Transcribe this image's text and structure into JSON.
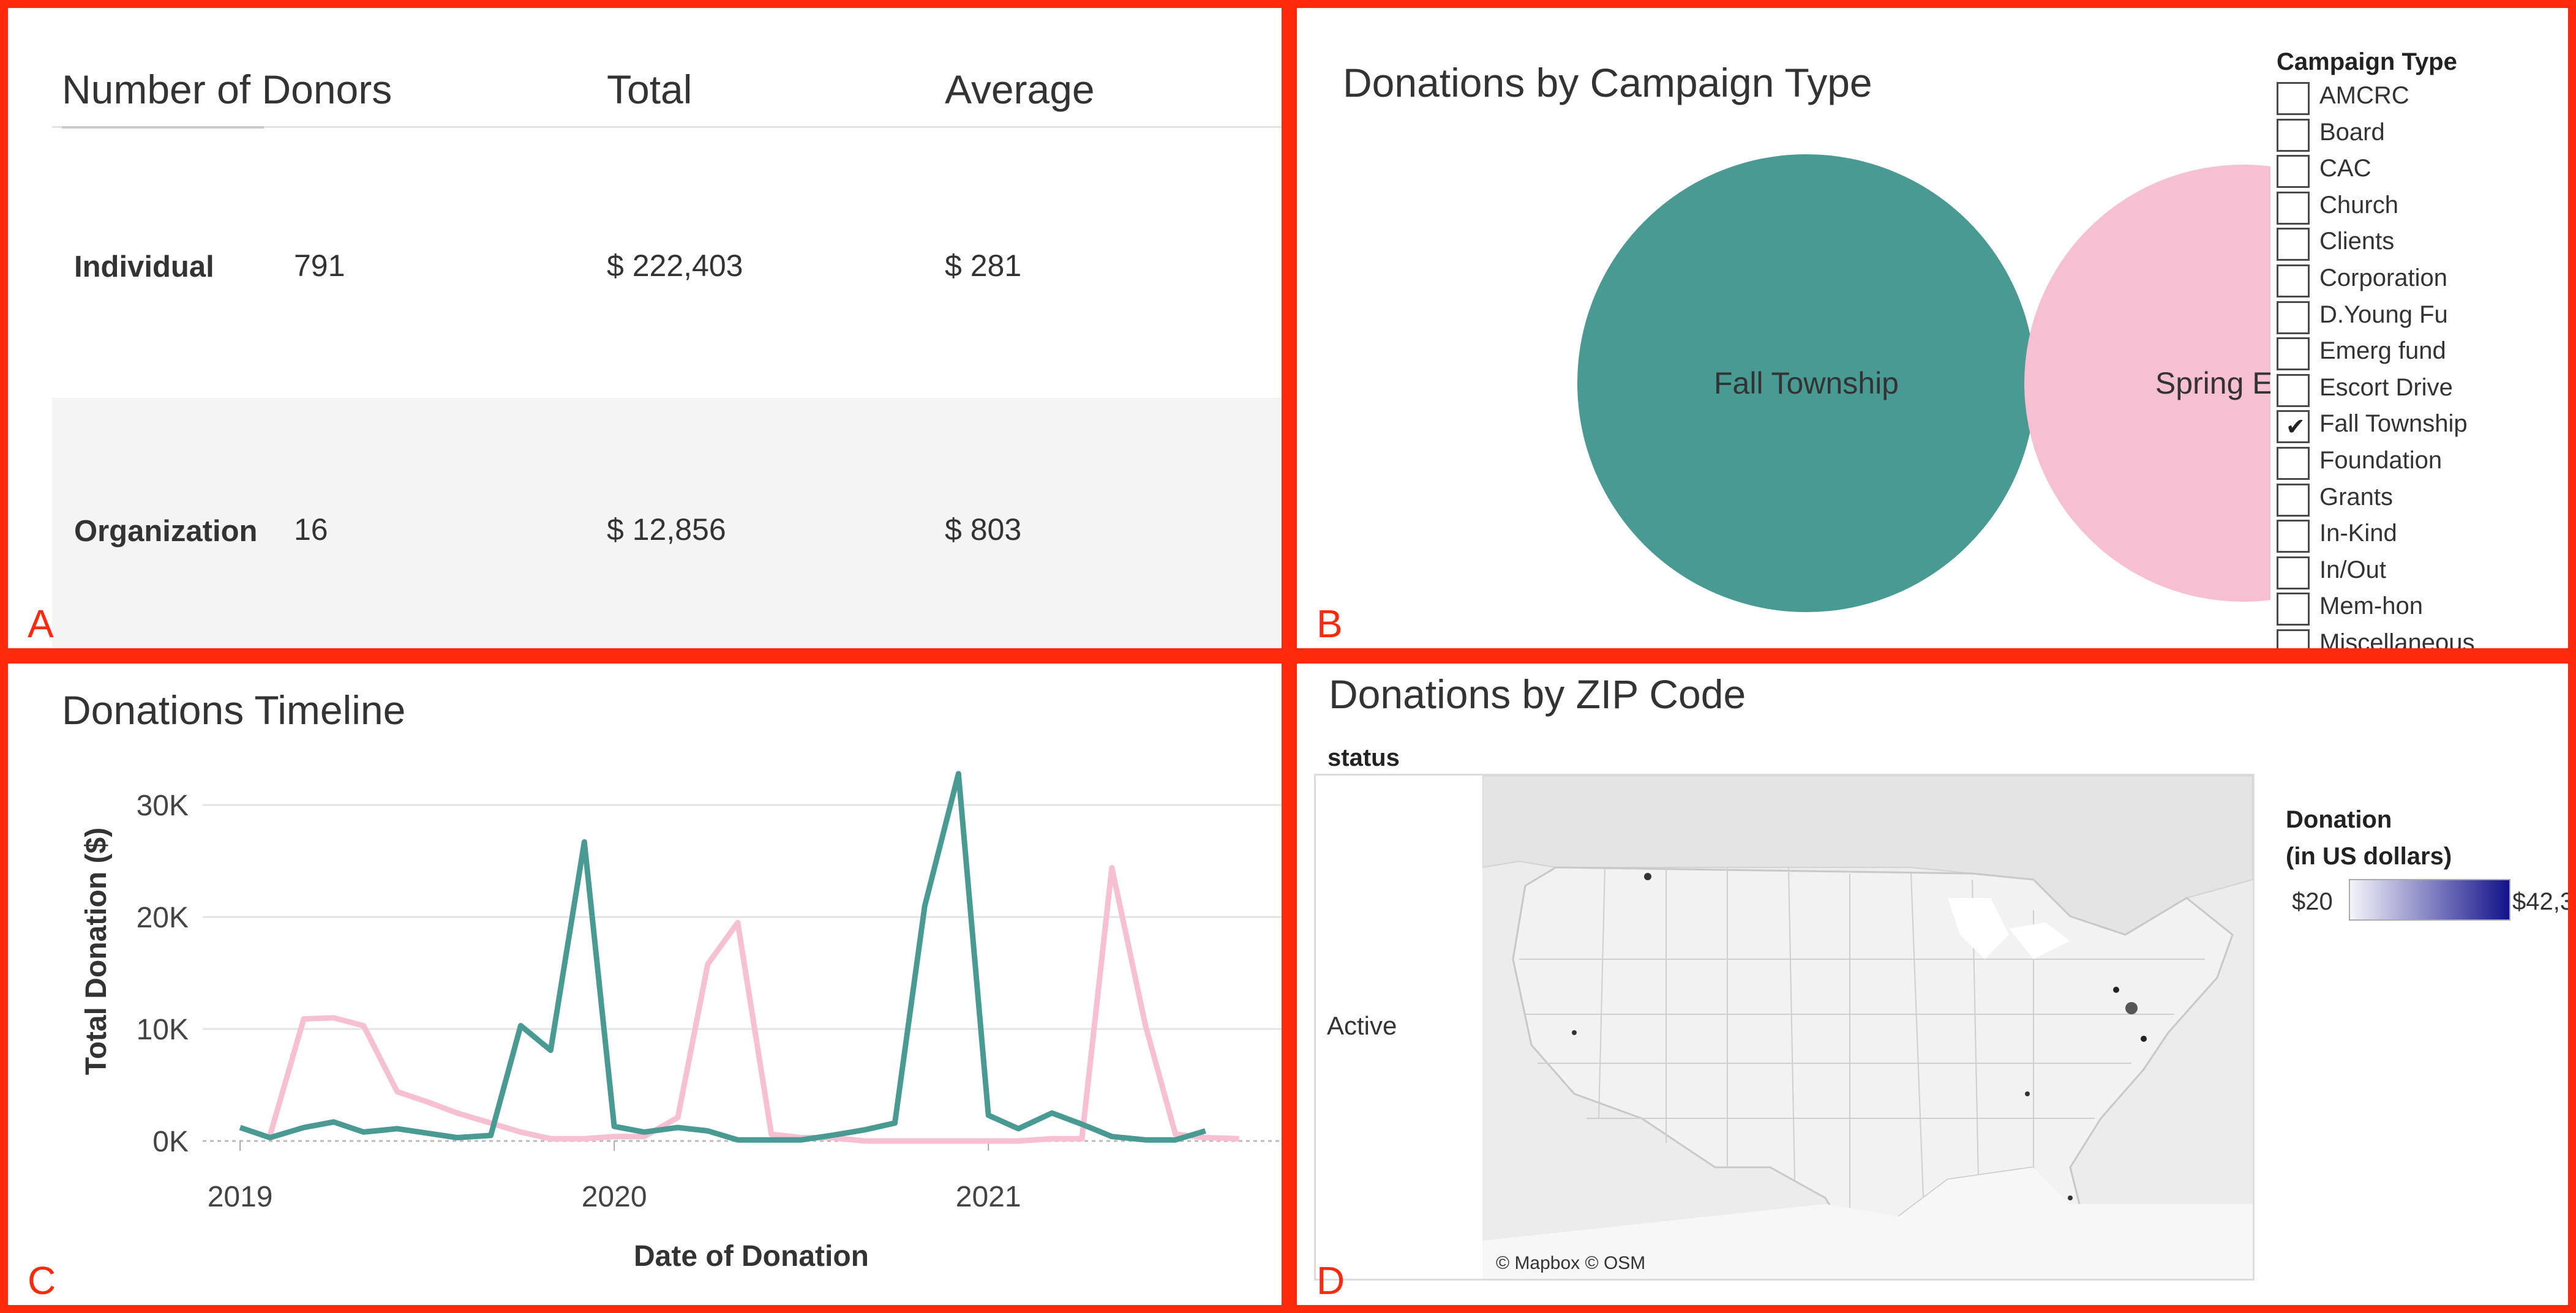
{
  "donors_table": {
    "headers": [
      "Number of Donors",
      "Total",
      "Average"
    ],
    "rows": [
      {
        "type": "Individual",
        "count": "791",
        "total": "$ 222,403",
        "average": "$ 281"
      },
      {
        "type": "Organization",
        "count": "16",
        "total": "$ 12,856",
        "average": "$ 803"
      }
    ]
  },
  "campaign": {
    "title": "Donations by Campaign Type",
    "bubbles": [
      {
        "label": "Fall Township",
        "color": "#4a9a94"
      },
      {
        "label": "Spring Event",
        "color": "#f7bfd2"
      }
    ],
    "filter_title": "Campaign Type",
    "filter_items": [
      {
        "label": "AMCRC",
        "checked": false
      },
      {
        "label": "Board",
        "checked": false
      },
      {
        "label": "CAC",
        "checked": false
      },
      {
        "label": "Church",
        "checked": false
      },
      {
        "label": "Clients",
        "checked": false
      },
      {
        "label": "Corporation",
        "checked": false
      },
      {
        "label": "D.Young Fu",
        "checked": false
      },
      {
        "label": "Emerg fund",
        "checked": false
      },
      {
        "label": "Escort Drive",
        "checked": false
      },
      {
        "label": "Fall Township",
        "checked": true
      },
      {
        "label": "Foundation",
        "checked": false
      },
      {
        "label": "Grants",
        "checked": false
      },
      {
        "label": "In-Kind",
        "checked": false
      },
      {
        "label": "In/Out",
        "checked": false
      },
      {
        "label": "Mem-hon",
        "checked": false
      },
      {
        "label": "Miscellaneous",
        "checked": false
      }
    ]
  },
  "chart_data": {
    "type": "line",
    "title": "Donations Timeline",
    "xlabel": "Date of Donation",
    "ylabel": "Total Donation ($)",
    "x_ticks": [
      "2019",
      "2020",
      "2021"
    ],
    "y_ticks": [
      "0K",
      "10K",
      "20K",
      "30K"
    ],
    "xlim": [
      2018.9,
      2021.8
    ],
    "ylim": [
      0,
      34000
    ],
    "series": [
      {
        "name": "Fall Township",
        "color": "#4a9a94",
        "points": [
          [
            2019.0,
            1200
          ],
          [
            2019.08,
            300
          ],
          [
            2019.17,
            1200
          ],
          [
            2019.25,
            1700
          ],
          [
            2019.33,
            800
          ],
          [
            2019.42,
            1100
          ],
          [
            2019.5,
            700
          ],
          [
            2019.58,
            300
          ],
          [
            2019.67,
            500
          ],
          [
            2019.75,
            10300
          ],
          [
            2019.83,
            8100
          ],
          [
            2019.92,
            26700
          ],
          [
            2020.0,
            1300
          ],
          [
            2020.08,
            800
          ],
          [
            2020.17,
            1200
          ],
          [
            2020.25,
            900
          ],
          [
            2020.33,
            100
          ],
          [
            2020.42,
            100
          ],
          [
            2020.5,
            100
          ],
          [
            2020.58,
            500
          ],
          [
            2020.67,
            1000
          ],
          [
            2020.75,
            1600
          ],
          [
            2020.83,
            21000
          ],
          [
            2020.92,
            32800
          ],
          [
            2021.0,
            2300
          ],
          [
            2021.08,
            1100
          ],
          [
            2021.17,
            2500
          ],
          [
            2021.25,
            1500
          ],
          [
            2021.33,
            400
          ],
          [
            2021.42,
            100
          ],
          [
            2021.5,
            100
          ],
          [
            2021.58,
            900
          ]
        ]
      },
      {
        "name": "Spring Event",
        "color": "#f7bfd2",
        "points": [
          [
            2019.08,
            500
          ],
          [
            2019.17,
            10900
          ],
          [
            2019.25,
            11000
          ],
          [
            2019.33,
            10300
          ],
          [
            2019.42,
            4400
          ],
          [
            2019.5,
            3500
          ],
          [
            2019.58,
            2500
          ],
          [
            2019.67,
            1600
          ],
          [
            2019.75,
            800
          ],
          [
            2019.83,
            200
          ],
          [
            2019.92,
            200
          ],
          [
            2020.0,
            400
          ],
          [
            2020.08,
            400
          ],
          [
            2020.17,
            2100
          ],
          [
            2020.25,
            15800
          ],
          [
            2020.33,
            19500
          ],
          [
            2020.42,
            600
          ],
          [
            2020.5,
            300
          ],
          [
            2020.58,
            300
          ],
          [
            2020.67,
            0
          ],
          [
            2020.75,
            0
          ],
          [
            2020.83,
            0
          ],
          [
            2020.92,
            0
          ],
          [
            2021.0,
            0
          ],
          [
            2021.08,
            0
          ],
          [
            2021.17,
            200
          ],
          [
            2021.25,
            200
          ],
          [
            2021.33,
            24400
          ],
          [
            2021.42,
            10300
          ],
          [
            2021.5,
            600
          ],
          [
            2021.58,
            300
          ],
          [
            2021.67,
            200
          ]
        ]
      }
    ]
  },
  "zip_map": {
    "title": "Donations by ZIP Code",
    "column_header": "status",
    "row_label": "Active",
    "attribution": "© Mapbox © OSM",
    "legend_title_line1": "Donation",
    "legend_title_line2": "(in US dollars)",
    "legend_min": "$20",
    "legend_max": "$42,3",
    "color_low": "#f4f4fb",
    "color_high": "#13138a"
  },
  "panel_labels": {
    "a": "A",
    "b": "B",
    "c": "C",
    "d": "D"
  }
}
